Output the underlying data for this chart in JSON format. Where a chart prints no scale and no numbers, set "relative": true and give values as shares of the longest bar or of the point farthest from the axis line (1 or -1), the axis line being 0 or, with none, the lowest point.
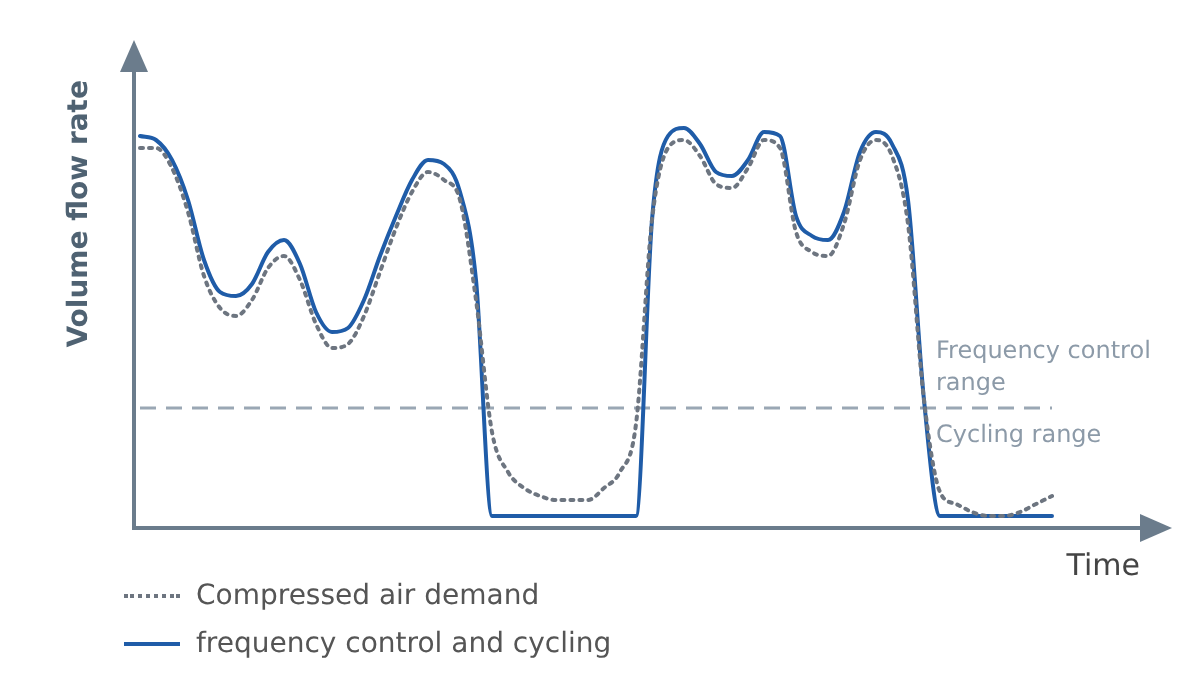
{
  "chart_data": {
    "type": "line",
    "relative": true,
    "ylabel": "Volume flow rate",
    "xlabel": "Time",
    "marker": "none",
    "legend": "bottom left",
    "categories": [
      null,
      null,
      null,
      null,
      null,
      null,
      null,
      null,
      null,
      null,
      null,
      null,
      null,
      null,
      null,
      null,
      null,
      null,
      null,
      null,
      null,
      null,
      null,
      null,
      null,
      null,
      null,
      null,
      null,
      null,
      null,
      null,
      null,
      null,
      null,
      null,
      null,
      null,
      null,
      null,
      null,
      null,
      null,
      null,
      null,
      null,
      null,
      null,
      null,
      null,
      null,
      null,
      null,
      null,
      null,
      null,
      null,
      null,
      null,
      null,
      null,
      null,
      null
    ],
    "series": [
      {
        "name": "Compressed air demand",
        "color": "#6d7580",
        "line_style": "dotted",
        "values": [
          0.95,
          0.95,
          0.9,
          0.79,
          0.63,
          0.55,
          0.53,
          0.57,
          0.65,
          0.68,
          0.62,
          0.51,
          0.45,
          0.46,
          0.53,
          0.64,
          0.75,
          0.84,
          0.89,
          0.87,
          0.82,
          0.57,
          0.24,
          0.14,
          0.1,
          0.08,
          0.07,
          0.07,
          0.07,
          0.1,
          0.14,
          0.26,
          0.77,
          0.95,
          0.97,
          0.93,
          0.86,
          0.85,
          0.9,
          0.97,
          0.95,
          0.74,
          0.69,
          0.68,
          0.76,
          0.92,
          0.97,
          0.93,
          0.76,
          0.32,
          0.09,
          0.06,
          0.04,
          0.03,
          0.03,
          0.04,
          0.06,
          0.08,
          null,
          null,
          null,
          null,
          null
        ]
      },
      {
        "name": "frequency control and cycling",
        "color": "#1f5ca8",
        "line_style": "solid",
        "values": [
          0.98,
          0.97,
          0.92,
          0.82,
          0.67,
          0.59,
          0.58,
          0.61,
          0.69,
          0.72,
          0.66,
          0.54,
          0.49,
          0.5,
          0.57,
          0.68,
          0.78,
          0.87,
          0.92,
          0.91,
          0.84,
          0.62,
          0.03,
          0.03,
          0.03,
          0.03,
          0.03,
          0.03,
          0.03,
          0.03,
          0.03,
          0.03,
          0.77,
          0.98,
          1,
          0.96,
          0.89,
          0.88,
          0.92,
          0.99,
          0.98,
          0.78,
          0.73,
          0.72,
          0.79,
          0.94,
          0.99,
          0.96,
          0.82,
          0.32,
          0.03,
          0.03,
          0.03,
          0.03,
          0.03,
          0.03,
          0.03,
          0.03,
          null,
          null,
          null,
          null,
          null
        ]
      }
    ],
    "ref_lines": [
      {
        "axis": "y",
        "value": 0.3,
        "color": "#9aa7b4",
        "line_style": "dashed"
      }
    ],
    "annotations": [
      "Frequency control range",
      "Cycling range"
    ]
  }
}
